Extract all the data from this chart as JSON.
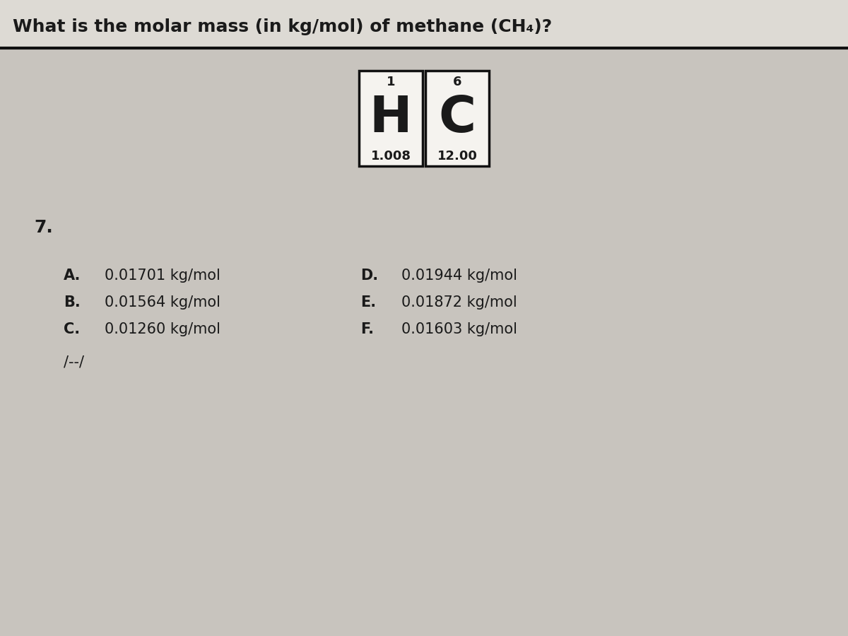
{
  "title": "What is the molar mass (in kg/mol) of methane (CH₄)?",
  "title_fontsize": 18,
  "background_color": "#c8c4be",
  "top_strip_color": "#dddad4",
  "separator_color": "#111111",
  "element_h_symbol": "H",
  "element_h_number": "1",
  "element_h_mass": "1.008",
  "element_c_symbol": "C",
  "element_c_number": "6",
  "element_c_mass": "12.00",
  "question_number": "7.",
  "choices_left": [
    {
      "label": "A.",
      "text": "0.01701 kg/mol"
    },
    {
      "label": "B.",
      "text": "0.01564 kg/mol"
    },
    {
      "label": "C.",
      "text": "0.01260 kg/mol"
    }
  ],
  "choices_right": [
    {
      "label": "D.",
      "text": "0.01944 kg/mol"
    },
    {
      "label": "E.",
      "text": "0.01872 kg/mol"
    },
    {
      "label": "F.",
      "text": "0.01603 kg/mol"
    }
  ],
  "footer_text": "/--/",
  "text_color": "#1a1a1a",
  "box_edge_color": "#111111",
  "box_fill_color": "#f5f3ef"
}
